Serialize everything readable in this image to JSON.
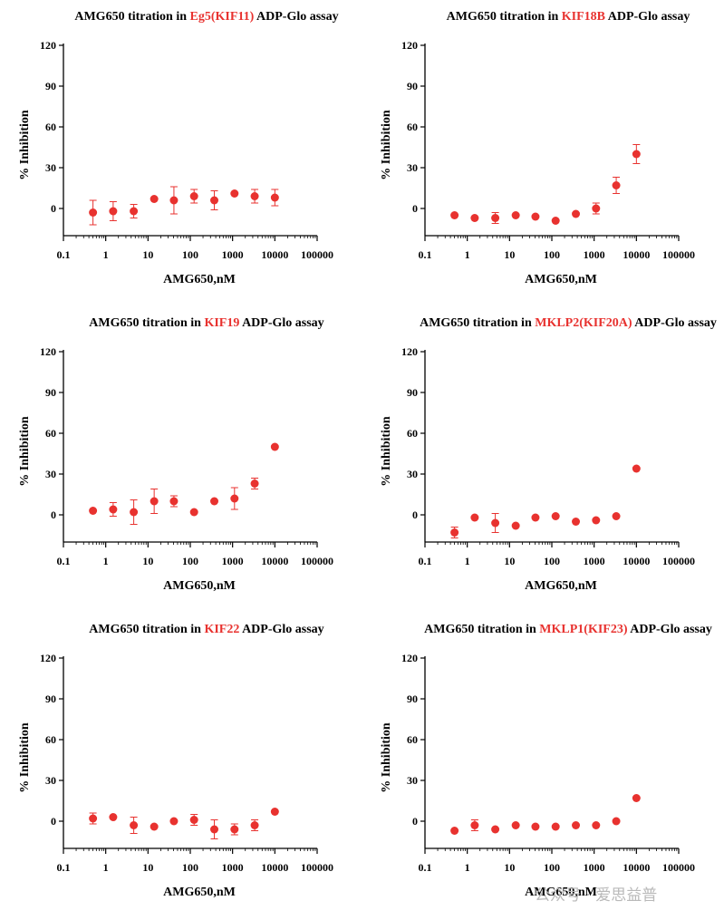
{
  "watermark": "公众号 · 爱思益普",
  "chart_data": [
    {
      "type": "scatter",
      "title_prefix": "AMG650 titration in ",
      "title_highlight": "Eg5(KIF11)",
      "title_suffix": " ADP-Glo assay",
      "xlabel": "AMG650,nM",
      "ylabel": "% Inhibition",
      "xscale": "log",
      "xlim": [
        0.1,
        100000
      ],
      "ylim": [
        -20,
        120
      ],
      "xticks": [
        "0.1",
        "1",
        "10",
        "100",
        "1000",
        "10000",
        "100000"
      ],
      "yticks": [
        "0",
        "30",
        "60",
        "90",
        "120"
      ],
      "marker_color": "#e8322f",
      "x": [
        0.5,
        1.5,
        4.6,
        14,
        41,
        123,
        370,
        1111,
        3333,
        10000
      ],
      "y": [
        -3,
        -2,
        -2,
        7,
        6,
        9,
        6,
        11,
        9,
        8
      ],
      "err": [
        9,
        7,
        5,
        0,
        10,
        5,
        7,
        0,
        5,
        6
      ]
    },
    {
      "type": "scatter",
      "title_prefix": "AMG650 titration in ",
      "title_highlight": "KIF18B",
      "title_suffix": " ADP-Glo assay",
      "xlabel": "AMG650,nM",
      "ylabel": "% Inhibition",
      "xscale": "log",
      "xlim": [
        0.1,
        100000
      ],
      "ylim": [
        -20,
        120
      ],
      "xticks": [
        "0.1",
        "1",
        "10",
        "100",
        "1000",
        "10000",
        "100000"
      ],
      "yticks": [
        "0",
        "30",
        "60",
        "90",
        "120"
      ],
      "marker_color": "#e8322f",
      "x": [
        0.5,
        1.5,
        4.6,
        14,
        41,
        123,
        370,
        1111,
        3333,
        10000
      ],
      "y": [
        -5,
        -7,
        -7,
        -5,
        -6,
        -9,
        -4,
        0,
        17,
        40
      ],
      "err": [
        0,
        0,
        4,
        0,
        0,
        0,
        0,
        4,
        6,
        7
      ]
    },
    {
      "type": "scatter",
      "title_prefix": "AMG650 titration in ",
      "title_highlight": "KIF19",
      "title_suffix": " ADP-Glo assay",
      "xlabel": "AMG650,nM",
      "ylabel": "% Inhibition",
      "xscale": "log",
      "xlim": [
        0.1,
        100000
      ],
      "ylim": [
        -20,
        120
      ],
      "xticks": [
        "0.1",
        "1",
        "10",
        "100",
        "1000",
        "10000",
        "100000"
      ],
      "yticks": [
        "0",
        "30",
        "60",
        "90",
        "120"
      ],
      "marker_color": "#e8322f",
      "x": [
        0.5,
        1.5,
        4.6,
        14,
        41,
        123,
        370,
        1111,
        3333,
        10000
      ],
      "y": [
        3,
        4,
        2,
        10,
        10,
        2,
        10,
        12,
        23,
        50
      ],
      "err": [
        0,
        5,
        9,
        9,
        4,
        0,
        0,
        8,
        4,
        0
      ]
    },
    {
      "type": "scatter",
      "title_prefix": "AMG650 titration in ",
      "title_highlight": "MKLP2(KIF20A)",
      "title_suffix": " ADP-Glo assay",
      "xlabel": "AMG650,nM",
      "ylabel": "% Inhibition",
      "xscale": "log",
      "xlim": [
        0.1,
        100000
      ],
      "ylim": [
        -20,
        120
      ],
      "xticks": [
        "0.1",
        "1",
        "10",
        "100",
        "1000",
        "10000",
        "100000"
      ],
      "yticks": [
        "0",
        "30",
        "60",
        "90",
        "120"
      ],
      "marker_color": "#e8322f",
      "x": [
        0.5,
        1.5,
        4.6,
        14,
        41,
        123,
        370,
        1111,
        3333,
        10000
      ],
      "y": [
        -13,
        -2,
        -6,
        -8,
        -2,
        -1,
        -5,
        -4,
        -1,
        34
      ],
      "err": [
        4,
        0,
        7,
        0,
        0,
        0,
        0,
        0,
        0,
        0
      ]
    },
    {
      "type": "scatter",
      "title_prefix": "AMG650 titration in ",
      "title_highlight": "KIF22",
      "title_suffix": " ADP-Glo assay",
      "xlabel": "AMG650,nM",
      "ylabel": "% Inhibition",
      "xscale": "log",
      "xlim": [
        0.1,
        100000
      ],
      "ylim": [
        -20,
        120
      ],
      "xticks": [
        "0.1",
        "1",
        "10",
        "100",
        "1000",
        "10000",
        "100000"
      ],
      "yticks": [
        "0",
        "30",
        "60",
        "90",
        "120"
      ],
      "marker_color": "#e8322f",
      "x": [
        0.5,
        1.5,
        4.6,
        14,
        41,
        123,
        370,
        1111,
        3333,
        10000
      ],
      "y": [
        2,
        3,
        -3,
        -4,
        0,
        1,
        -6,
        -6,
        -3,
        7
      ],
      "err": [
        4,
        0,
        6,
        0,
        0,
        4,
        7,
        4,
        4,
        0
      ]
    },
    {
      "type": "scatter",
      "title_prefix": "AMG650 titration in ",
      "title_highlight": "MKLP1(KIF23)",
      "title_suffix": " ADP-Glo assay",
      "xlabel": "AMG650,nM",
      "ylabel": "% Inhibition",
      "xscale": "log",
      "xlim": [
        0.1,
        100000
      ],
      "ylim": [
        -20,
        120
      ],
      "xticks": [
        "0.1",
        "1",
        "10",
        "100",
        "1000",
        "10000",
        "100000"
      ],
      "yticks": [
        "0",
        "30",
        "60",
        "90",
        "120"
      ],
      "marker_color": "#e8322f",
      "x": [
        0.5,
        1.5,
        4.6,
        14,
        41,
        123,
        370,
        1111,
        3333,
        10000
      ],
      "y": [
        -7,
        -3,
        -6,
        -3,
        -4,
        -4,
        -3,
        -3,
        0,
        17
      ],
      "err": [
        0,
        4,
        0,
        0,
        0,
        0,
        0,
        0,
        0,
        0
      ]
    }
  ]
}
